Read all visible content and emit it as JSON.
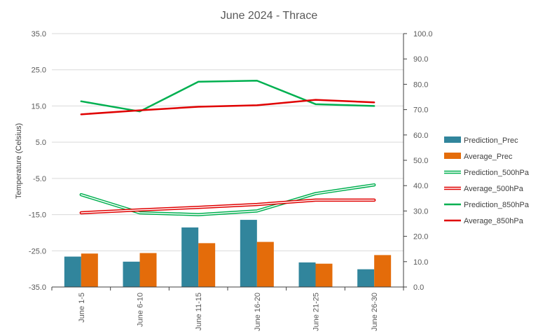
{
  "chart_data": {
    "type": "bar",
    "title": "June 2024 - Thrace",
    "ylabel": "Temperature (Celsius)",
    "xlabel": "",
    "categories": [
      "June 1-5",
      "June 6-10",
      "June 11-15",
      "June 16-20",
      "June 21-25",
      "June 26-30"
    ],
    "y_left": {
      "min": -35,
      "max": 35,
      "step": 10,
      "ticks": [
        "35.0",
        "25.0",
        "15.0",
        "5.0",
        "-5.0",
        "-15.0",
        "-25.0",
        "-35.0"
      ]
    },
    "y_right": {
      "min": 0,
      "max": 100,
      "step": 10,
      "ticks": [
        "100.0",
        "90.0",
        "80.0",
        "70.0",
        "60.0",
        "50.0",
        "40.0",
        "30.0",
        "20.0",
        "10.0",
        "0.0"
      ]
    },
    "bar_series": [
      {
        "name": "Prediction_Prec",
        "axis": "right",
        "color": "#31859C",
        "values": [
          12.0,
          10.0,
          23.5,
          26.5,
          9.7,
          7.0
        ]
      },
      {
        "name": "Average_Prec",
        "axis": "right",
        "color": "#E46C0A",
        "values": [
          13.2,
          13.4,
          17.3,
          17.8,
          9.2,
          12.6
        ]
      }
    ],
    "line_series": [
      {
        "name": "Prediction_500hPa",
        "axis": "left",
        "color": "#00B050",
        "style": "double",
        "values": [
          -9.5,
          -14.5,
          -15.0,
          -14.0,
          -9.2,
          -6.8
        ]
      },
      {
        "name": "Average_500hPa",
        "axis": "left",
        "color": "#E00000",
        "style": "double",
        "values": [
          -14.5,
          -13.7,
          -13.0,
          -12.2,
          -11.0,
          -11.0
        ]
      },
      {
        "name": "Prediction_850hPa",
        "axis": "left",
        "color": "#00B050",
        "style": "solid",
        "values": [
          16.3,
          13.5,
          21.7,
          22.0,
          15.5,
          15.0
        ]
      },
      {
        "name": "Average_850hPa",
        "axis": "left",
        "color": "#E00000",
        "style": "solid",
        "values": [
          12.7,
          13.8,
          14.8,
          15.2,
          16.7,
          16.0
        ]
      }
    ],
    "grid": true,
    "legend_position": "right"
  }
}
